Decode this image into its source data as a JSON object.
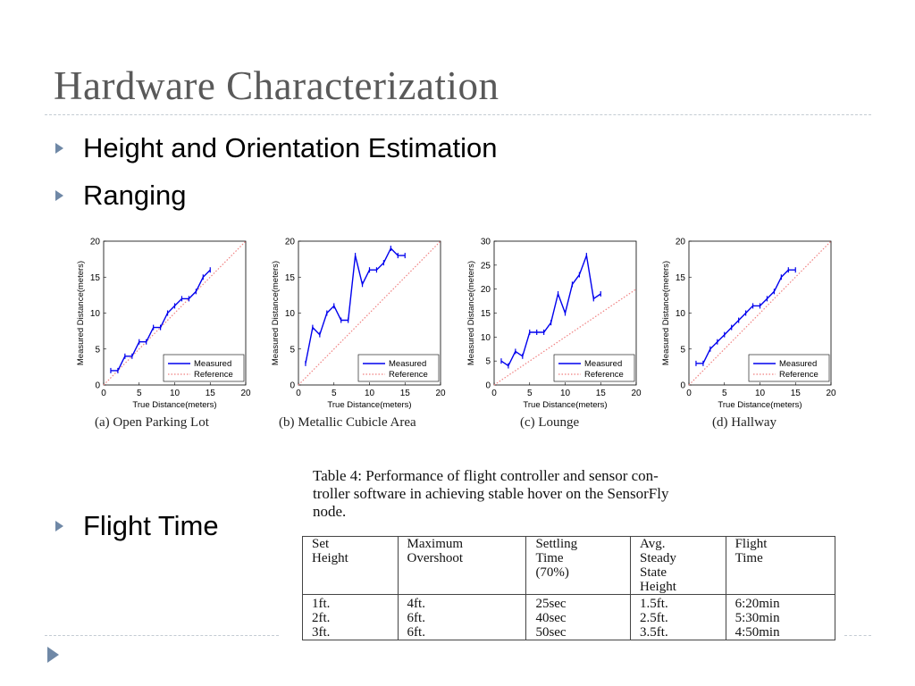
{
  "slide": {
    "title": "Hardware Characterization",
    "bullets": [
      "Height and Orientation Estimation",
      "Ranging",
      "Flight Time"
    ]
  },
  "colors": {
    "accent": "#6f88a6",
    "title": "#595959",
    "measured": "#0000ee",
    "reference": "#f08080"
  },
  "icons": {
    "bullet": "triangle-right-icon",
    "nav": "triangle-right-icon"
  },
  "chart_data": [
    {
      "type": "line",
      "caption": "(a) Open Parking Lot",
      "xlabel": "True Distance(meters)",
      "ylabel": "Measured Distance(meters)",
      "xlim": [
        0,
        20
      ],
      "ylim": [
        0,
        20
      ],
      "xticks": [
        0,
        5,
        10,
        15,
        20
      ],
      "yticks": [
        0,
        5,
        10,
        15,
        20
      ],
      "legend": "bottom-right",
      "series": [
        {
          "name": "Measured",
          "x": [
            1,
            2,
            3,
            4,
            5,
            6,
            7,
            8,
            9,
            10,
            11,
            12,
            13,
            14,
            15
          ],
          "y": [
            2,
            2,
            4,
            4,
            6,
            6,
            8,
            8,
            10,
            11,
            12,
            12,
            13,
            15,
            16
          ]
        },
        {
          "name": "Reference",
          "x": [
            0,
            20
          ],
          "y": [
            0,
            20
          ]
        }
      ]
    },
    {
      "type": "line",
      "caption": "(b) Metallic Cubicle Area",
      "xlabel": "True Distance(meters)",
      "ylabel": "Measured Distance(meters)",
      "xlim": [
        0,
        20
      ],
      "ylim": [
        0,
        20
      ],
      "xticks": [
        0,
        5,
        10,
        15,
        20
      ],
      "yticks": [
        0,
        5,
        10,
        15,
        20
      ],
      "legend": "bottom-right",
      "series": [
        {
          "name": "Measured",
          "x": [
            1,
            2,
            3,
            4,
            5,
            6,
            7,
            8,
            9,
            10,
            11,
            12,
            13,
            14,
            15
          ],
          "y": [
            3,
            8,
            7,
            10,
            11,
            9,
            9,
            18,
            14,
            16,
            16,
            17,
            19,
            18,
            18
          ]
        },
        {
          "name": "Reference",
          "x": [
            0,
            20
          ],
          "y": [
            0,
            20
          ]
        }
      ]
    },
    {
      "type": "line",
      "caption": "(c) Lounge",
      "xlabel": "True Distance(meters)",
      "ylabel": "Measured Distance(meters)",
      "xlim": [
        0,
        20
      ],
      "ylim": [
        0,
        30
      ],
      "xticks": [
        0,
        5,
        10,
        15,
        20
      ],
      "yticks": [
        0,
        5,
        10,
        15,
        20,
        25,
        30
      ],
      "legend": "bottom-right",
      "series": [
        {
          "name": "Measured",
          "x": [
            1,
            2,
            3,
            4,
            5,
            6,
            7,
            8,
            9,
            10,
            11,
            12,
            13,
            14,
            15
          ],
          "y": [
            5,
            4,
            7,
            6,
            11,
            11,
            11,
            13,
            19,
            15,
            21,
            23,
            27,
            18,
            19
          ]
        },
        {
          "name": "Reference",
          "x": [
            0,
            20
          ],
          "y": [
            0,
            20
          ]
        }
      ]
    },
    {
      "type": "line",
      "caption": "(d) Hallway",
      "xlabel": "True Distance(meters)",
      "ylabel": "Measured Distance(meters)",
      "xlim": [
        0,
        20
      ],
      "ylim": [
        0,
        20
      ],
      "xticks": [
        0,
        5,
        10,
        15,
        20
      ],
      "yticks": [
        0,
        5,
        10,
        15,
        20
      ],
      "legend": "bottom-right",
      "series": [
        {
          "name": "Measured",
          "x": [
            1,
            2,
            3,
            4,
            5,
            6,
            7,
            8,
            9,
            10,
            11,
            12,
            13,
            14,
            15
          ],
          "y": [
            3,
            3,
            5,
            6,
            7,
            8,
            9,
            10,
            11,
            11,
            12,
            13,
            15,
            16,
            16
          ]
        },
        {
          "name": "Reference",
          "x": [
            0,
            20
          ],
          "y": [
            0,
            20
          ]
        }
      ]
    }
  ],
  "table": {
    "caption": "Table 4: Performance of flight controller and sensor controller software in achieving stable hover on the SensorFly node.",
    "caption_lines": [
      "Table 4:  Performance of flight controller and sensor con-",
      "troller software in achieving stable hover on the SensorFly",
      "node."
    ],
    "headers": [
      [
        "Set",
        "Height"
      ],
      [
        "Maximum",
        "Overshoot"
      ],
      [
        "Settling",
        "Time",
        "(70%)"
      ],
      [
        "Avg.",
        "Steady",
        "State",
        "Height"
      ],
      [
        "Flight",
        "Time"
      ]
    ],
    "rows": [
      [
        "1ft.",
        "4ft.",
        "25sec",
        "1.5ft.",
        "6:20min"
      ],
      [
        "2ft.",
        "6ft.",
        "40sec",
        "2.5ft.",
        "5:30min"
      ],
      [
        "3ft.",
        "6ft.",
        "50sec",
        "3.5ft.",
        "4:50min"
      ]
    ]
  }
}
